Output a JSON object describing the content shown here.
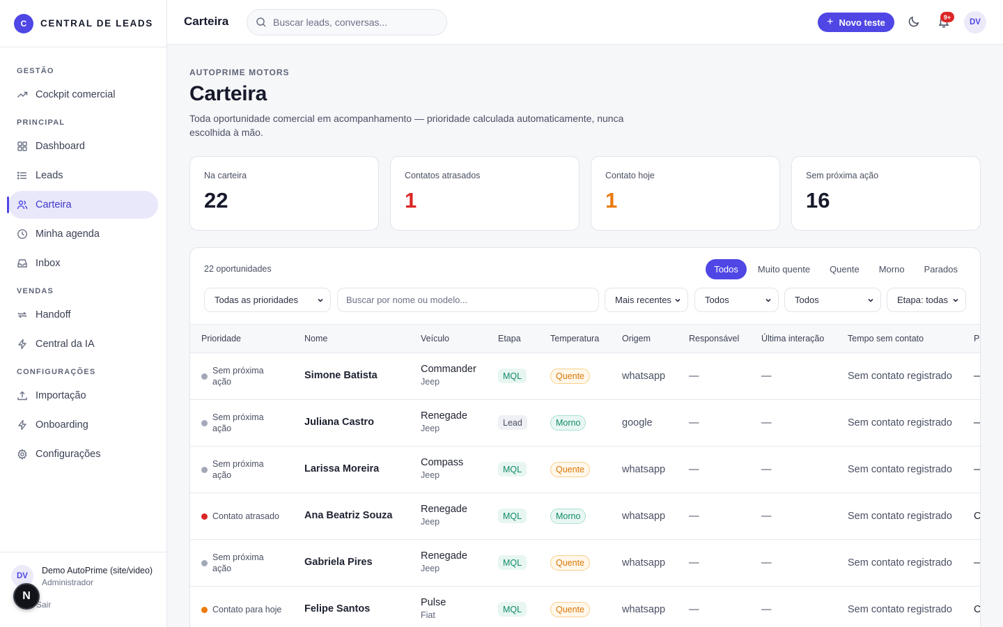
{
  "brand": {
    "logo_letter": "C",
    "name": "CENTRAL DE LEADS"
  },
  "sidebar": {
    "sections": [
      {
        "title": "GESTÃO",
        "items": [
          {
            "label": "Cockpit comercial",
            "icon": "trend-up-icon"
          }
        ]
      },
      {
        "title": "PRINCIPAL",
        "items": [
          {
            "label": "Dashboard",
            "icon": "grid-icon"
          },
          {
            "label": "Leads",
            "icon": "list-icon"
          },
          {
            "label": "Carteira",
            "icon": "users-icon",
            "active": true
          },
          {
            "label": "Minha agenda",
            "icon": "clock-icon"
          },
          {
            "label": "Inbox",
            "icon": "inbox-icon"
          }
        ]
      },
      {
        "title": "VENDAS",
        "items": [
          {
            "label": "Handoff",
            "icon": "swap-icon"
          },
          {
            "label": "Central da IA",
            "icon": "bolt-icon"
          }
        ]
      },
      {
        "title": "CONFIGURAÇÕES",
        "items": [
          {
            "label": "Importação",
            "icon": "upload-icon"
          },
          {
            "label": "Onboarding",
            "icon": "bolt-icon"
          },
          {
            "label": "Configurações",
            "icon": "gear-icon"
          }
        ]
      }
    ],
    "user": {
      "initials": "DV",
      "name": "Demo AutoPrime (site/video)",
      "role": "Administrador",
      "logout": "Sair"
    },
    "floating_badge": "N"
  },
  "topbar": {
    "title": "Carteira",
    "search_placeholder": "Buscar leads, conversas...",
    "new_button": "Novo teste",
    "notif_count": "9+",
    "avatar": "DV"
  },
  "page": {
    "eyebrow": "AUTOPRIME MOTORS",
    "title": "Carteira",
    "description": "Toda oportunidade comercial em acompanhamento — prioridade calculada automaticamente, nunca escolhida à mão."
  },
  "stats": [
    {
      "label": "Na carteira",
      "value": "22",
      "tone": "default"
    },
    {
      "label": "Contatos atrasados",
      "value": "1",
      "tone": "red"
    },
    {
      "label": "Contato hoje",
      "value": "1",
      "tone": "orange"
    },
    {
      "label": "Sem próxima ação",
      "value": "16",
      "tone": "default"
    }
  ],
  "table": {
    "count_label": "22 oportunidades",
    "tabs": [
      {
        "label": "Todos",
        "active": true
      },
      {
        "label": "Muito quente"
      },
      {
        "label": "Quente"
      },
      {
        "label": "Morno"
      },
      {
        "label": "Parados"
      }
    ],
    "filters": {
      "priority": "Todas as prioridades",
      "search_placeholder": "Buscar por nome ou modelo...",
      "sort": "Mais recentes",
      "filter_a": "Todos",
      "filter_b": "Todos",
      "stage": "Etapa: todas"
    },
    "columns": [
      "Prioridade",
      "Nome",
      "Veículo",
      "Etapa",
      "Temperatura",
      "Origem",
      "Responsável",
      "Última interação",
      "Tempo sem contato",
      "P"
    ],
    "rows": [
      {
        "priority": "Sem próxima ação",
        "dot": "gray",
        "name": "Simone Batista",
        "model": "Commander",
        "brand": "Jeep",
        "stage": "MQL",
        "temp": "Quente",
        "origin": "whatsapp",
        "owner": "—",
        "last": "—",
        "no_contact": "Sem contato registrado",
        "next": "—"
      },
      {
        "priority": "Sem próxima ação",
        "dot": "gray",
        "name": "Juliana Castro",
        "model": "Renegade",
        "brand": "Jeep",
        "stage": "Lead",
        "temp": "Morno",
        "origin": "google",
        "owner": "—",
        "last": "—",
        "no_contact": "Sem contato registrado",
        "next": "—"
      },
      {
        "priority": "Sem próxima ação",
        "dot": "gray",
        "name": "Larissa Moreira",
        "model": "Compass",
        "brand": "Jeep",
        "stage": "MQL",
        "temp": "Quente",
        "origin": "whatsapp",
        "owner": "—",
        "last": "—",
        "no_contact": "Sem contato registrado",
        "next": "—"
      },
      {
        "priority": "Contato atrasado",
        "dot": "red",
        "name": "Ana Beatriz Souza",
        "model": "Renegade",
        "brand": "Jeep",
        "stage": "MQL",
        "temp": "Morno",
        "origin": "whatsapp",
        "owner": "—",
        "last": "—",
        "no_contact": "Sem contato registrado",
        "next": "C"
      },
      {
        "priority": "Sem próxima ação",
        "dot": "gray",
        "name": "Gabriela Pires",
        "model": "Renegade",
        "brand": "Jeep",
        "stage": "MQL",
        "temp": "Quente",
        "origin": "whatsapp",
        "owner": "—",
        "last": "—",
        "no_contact": "Sem contato registrado",
        "next": "—"
      },
      {
        "priority": "Contato para hoje",
        "dot": "orange",
        "name": "Felipe Santos",
        "model": "Pulse",
        "brand": "Fiat",
        "stage": "MQL",
        "temp": "Quente",
        "origin": "whatsapp",
        "owner": "—",
        "last": "—",
        "no_contact": "Sem contato registrado",
        "next": "C"
      }
    ]
  },
  "colors": {
    "accent": "#4f46e5",
    "danger": "#dc2626",
    "warning": "#ea7a0c",
    "success": "#0f8a68"
  }
}
